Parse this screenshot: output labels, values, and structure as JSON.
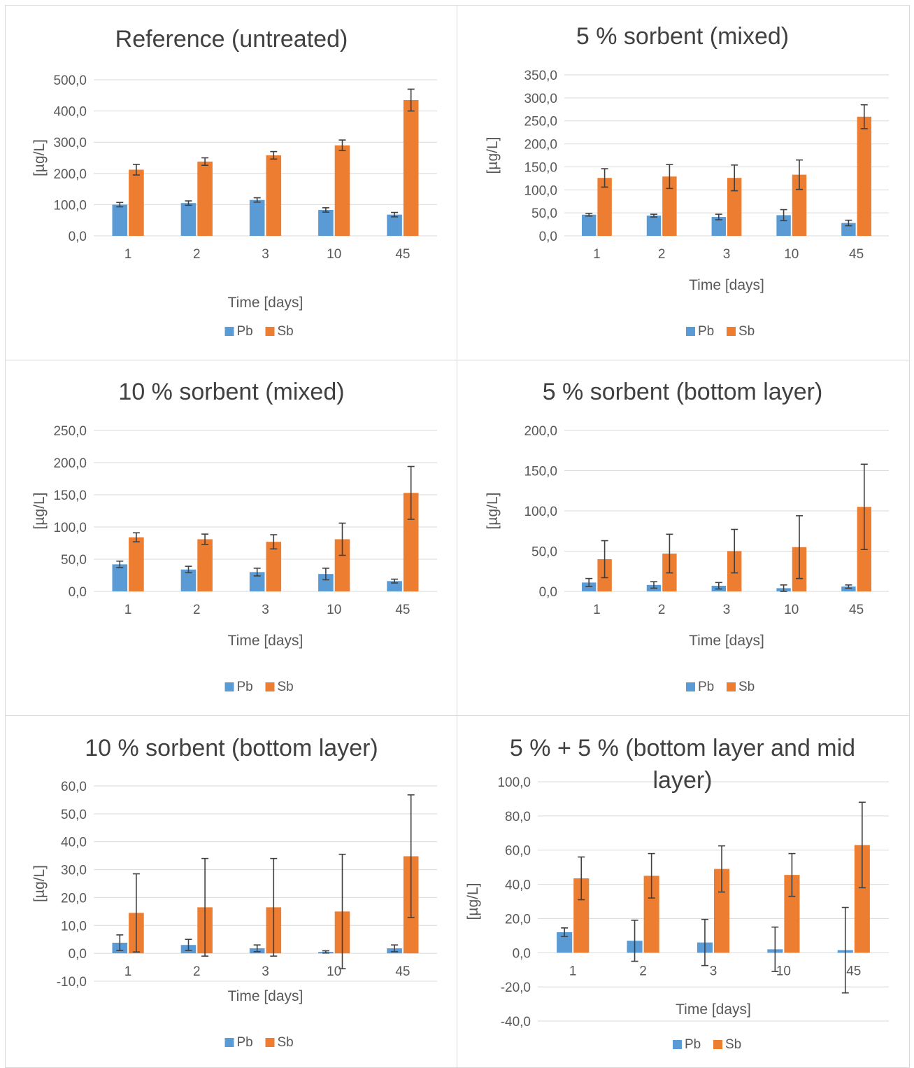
{
  "colors": {
    "Pb": "#5b9bd5",
    "Sb": "#ed7d31"
  },
  "chart_data": [
    {
      "type": "bar",
      "title": "Reference (untreated)",
      "xlabel": "Time [days]",
      "ylabel": "[µg/L]",
      "categories": [
        "1",
        "2",
        "3",
        "10",
        "45"
      ],
      "ylim": [
        0,
        500
      ],
      "yticks": [
        "0,0",
        "100,0",
        "200,0",
        "300,0",
        "400,0",
        "500,0"
      ],
      "legend": "bottom",
      "grid": true,
      "series": [
        {
          "name": "Pb",
          "values": [
            100,
            105,
            115,
            83,
            68
          ],
          "err": [
            7,
            7,
            7,
            7,
            7
          ]
        },
        {
          "name": "Sb",
          "values": [
            212,
            238,
            258,
            290,
            435
          ],
          "err": [
            17,
            12,
            12,
            17,
            35
          ]
        }
      ]
    },
    {
      "type": "bar",
      "title": "5 % sorbent (mixed)",
      "xlabel": "Time [days]",
      "ylabel": "[µg/L]",
      "categories": [
        "1",
        "2",
        "3",
        "10",
        "45"
      ],
      "ylim": [
        0,
        350
      ],
      "yticks": [
        "0,0",
        "50,0",
        "100,0",
        "150,0",
        "200,0",
        "250,0",
        "300,0",
        "350,0"
      ],
      "legend": "bottom",
      "grid": true,
      "series": [
        {
          "name": "Pb",
          "values": [
            46,
            44,
            41,
            45,
            28
          ],
          "err": [
            3,
            3,
            6,
            12,
            6
          ]
        },
        {
          "name": "Sb",
          "values": [
            126,
            129,
            126,
            133,
            259
          ],
          "err": [
            20,
            26,
            28,
            32,
            26
          ]
        }
      ]
    },
    {
      "type": "bar",
      "title": "10 % sorbent (mixed)",
      "xlabel": "Time [days]",
      "ylabel": "[µg/L]",
      "categories": [
        "1",
        "2",
        "3",
        "10",
        "45"
      ],
      "ylim": [
        0,
        250
      ],
      "yticks": [
        "0,0",
        "50,0",
        "100,0",
        "150,0",
        "200,0",
        "250,0"
      ],
      "legend": "bottom",
      "grid": true,
      "series": [
        {
          "name": "Pb",
          "values": [
            42,
            34,
            30,
            27,
            16
          ],
          "err": [
            5,
            5,
            6,
            9,
            3
          ]
        },
        {
          "name": "Sb",
          "values": [
            84,
            81,
            77,
            81,
            153
          ],
          "err": [
            7,
            8,
            11,
            25,
            41
          ]
        }
      ]
    },
    {
      "type": "bar",
      "title": "5 % sorbent (bottom layer)",
      "xlabel": "Time [days]",
      "ylabel": "[µg/L]",
      "categories": [
        "1",
        "2",
        "3",
        "10",
        "45"
      ],
      "ylim": [
        0,
        200
      ],
      "yticks": [
        "0,0",
        "50,0",
        "100,0",
        "150,0",
        "200,0"
      ],
      "legend": "bottom",
      "grid": true,
      "series": [
        {
          "name": "Pb",
          "values": [
            11,
            8,
            7,
            4,
            6
          ],
          "err": [
            5,
            4,
            4,
            4,
            2
          ]
        },
        {
          "name": "Sb",
          "values": [
            40,
            47,
            50,
            55,
            105
          ],
          "err": [
            23,
            24,
            27,
            39,
            53
          ]
        }
      ]
    },
    {
      "type": "bar",
      "title": "10 % sorbent (bottom layer)",
      "xlabel": "Time [days]",
      "ylabel": "[µg/L]",
      "categories": [
        "1",
        "2",
        "3",
        "10",
        "45"
      ],
      "ylim": [
        -10,
        60
      ],
      "yticks": [
        "-10,0",
        "0,0",
        "10,0",
        "20,0",
        "30,0",
        "40,0",
        "50,0",
        "60,0"
      ],
      "legend": "bottom",
      "grid": true,
      "series": [
        {
          "name": "Pb",
          "values": [
            3.8,
            3.0,
            1.8,
            0.5,
            1.8
          ],
          "err": [
            2.8,
            2.0,
            1.2,
            0.4,
            1.2
          ]
        },
        {
          "name": "Sb",
          "values": [
            14.5,
            16.5,
            16.5,
            15.0,
            34.8
          ],
          "err": [
            14.0,
            17.5,
            17.5,
            20.5,
            22.0
          ]
        }
      ]
    },
    {
      "type": "bar",
      "title": "5 % + 5 % (bottom layer and mid layer)",
      "title_lines": [
        "5 % + 5 % (bottom layer and mid",
        "layer)"
      ],
      "xlabel": "Time [days]",
      "ylabel": "[µg/L]",
      "categories": [
        "1",
        "2",
        "3",
        "10",
        "45"
      ],
      "ylim": [
        -40,
        100
      ],
      "yticks": [
        "-40,0",
        "-20,0",
        "0,0",
        "20,0",
        "40,0",
        "60,0",
        "80,0",
        "100,0"
      ],
      "legend": "bottom",
      "grid": true,
      "series": [
        {
          "name": "Pb",
          "values": [
            12,
            7,
            6,
            2,
            1.5
          ],
          "err": [
            2.5,
            12,
            13.5,
            13,
            25
          ]
        },
        {
          "name": "Sb",
          "values": [
            43.5,
            45,
            49,
            45.5,
            63
          ],
          "err": [
            12.5,
            13,
            13.5,
            12.5,
            25
          ]
        }
      ]
    }
  ]
}
